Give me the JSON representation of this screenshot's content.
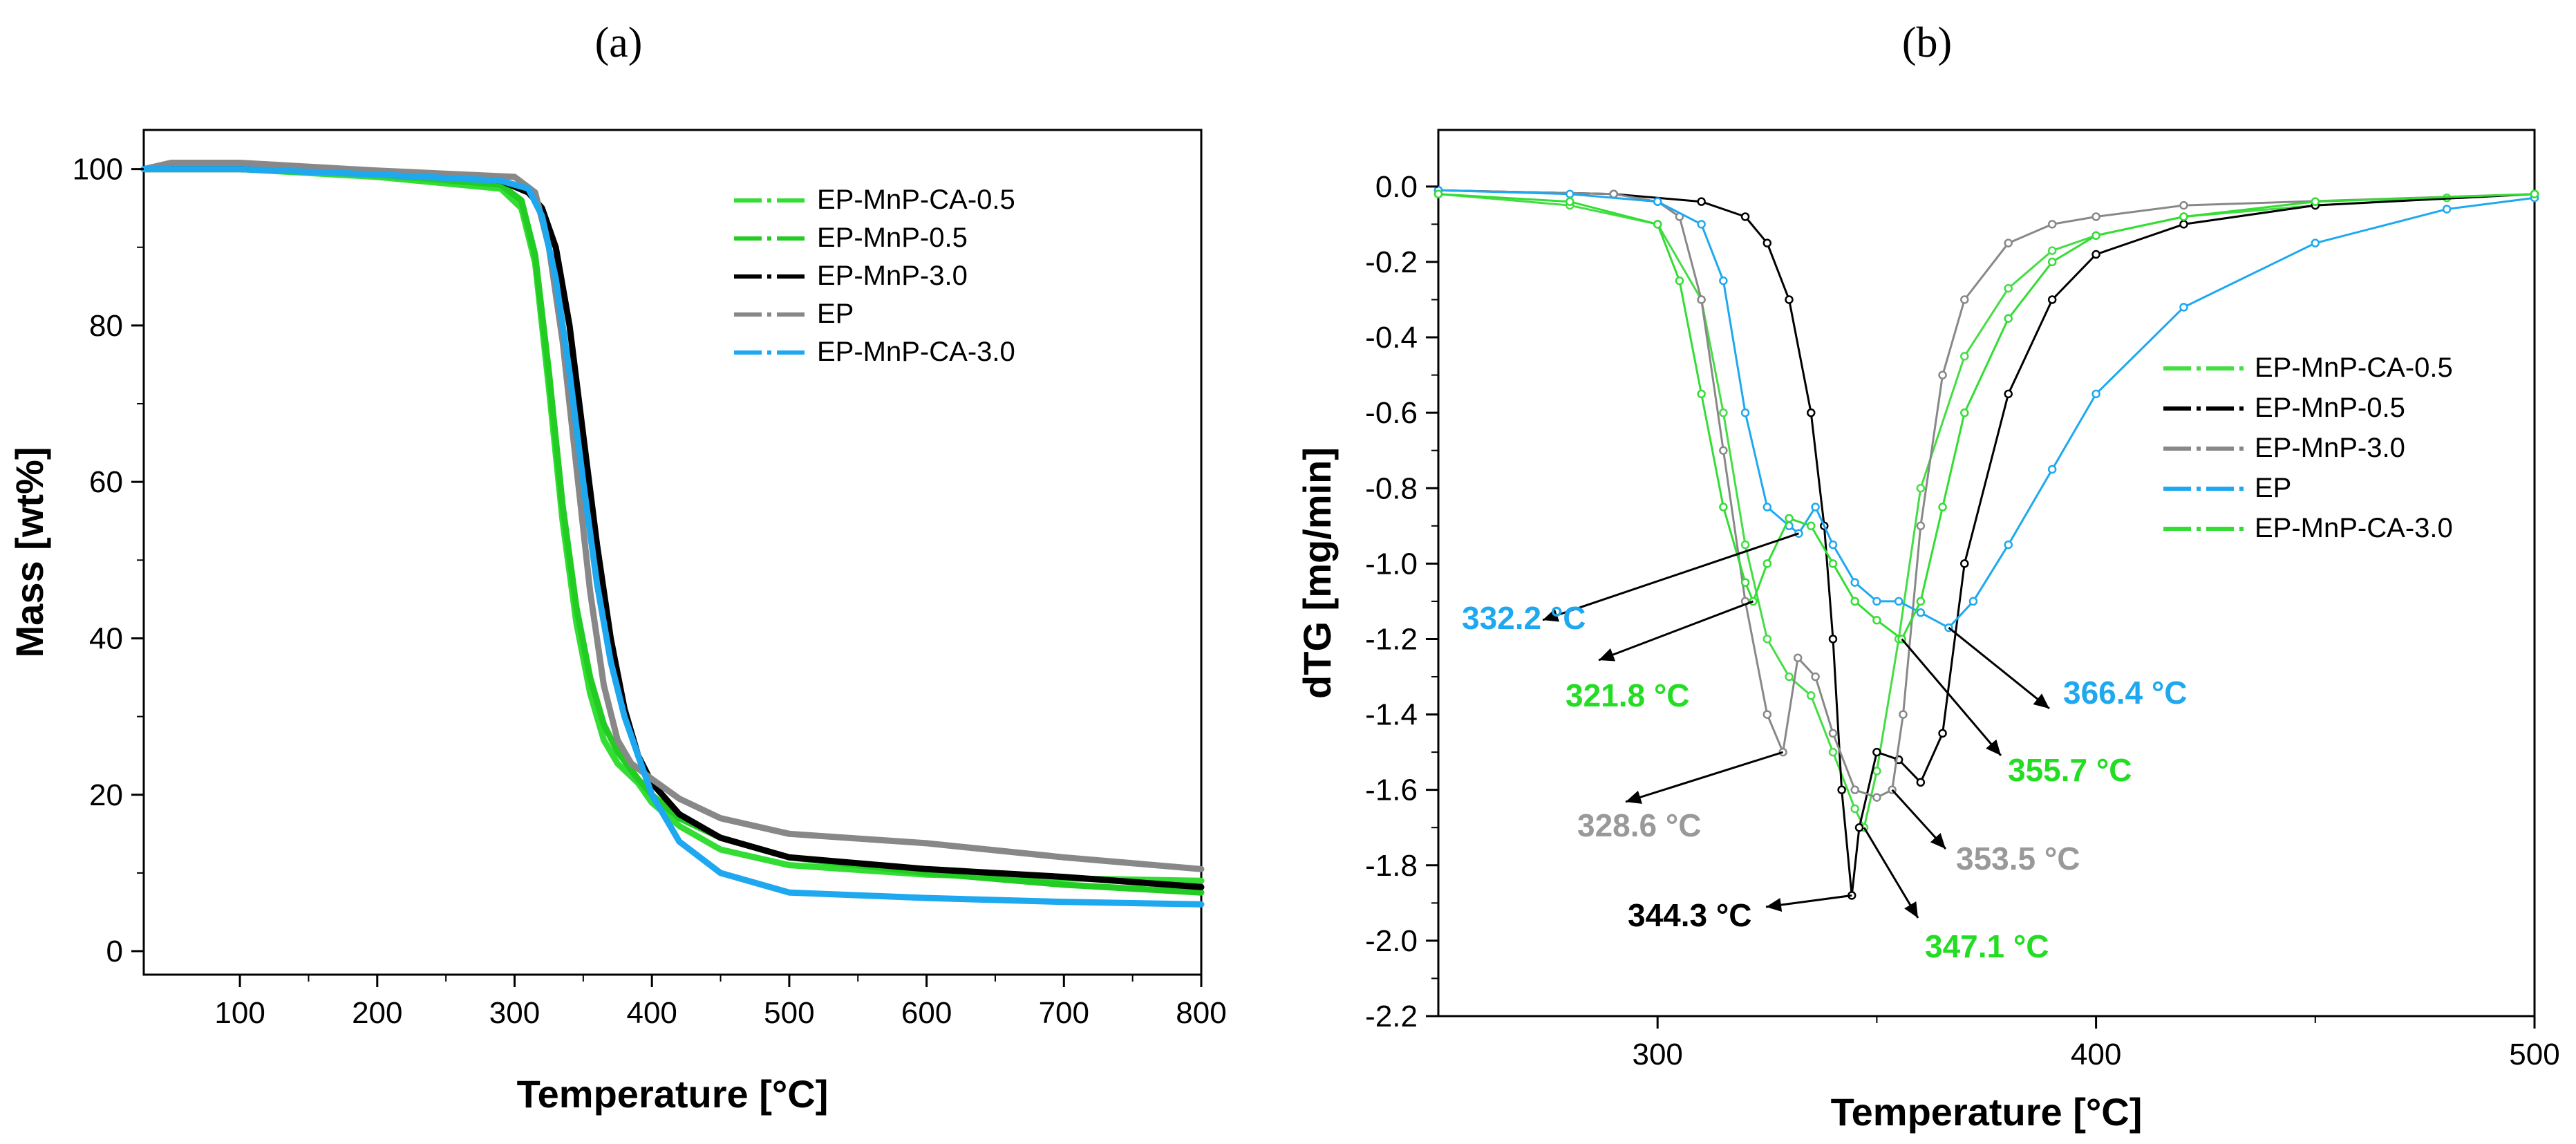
{
  "chart_data": [
    {
      "panel": "(a)",
      "type": "line",
      "title": "",
      "xlabel": "Temperature [°C]",
      "ylabel": "Mass [wt%]",
      "xlim": [
        30,
        800
      ],
      "ylim": [
        -3,
        105
      ],
      "xticks": [
        100,
        200,
        300,
        400,
        500,
        600,
        700,
        800
      ],
      "yticks": [
        0,
        20,
        40,
        60,
        80,
        100
      ],
      "legend_position": "top-right",
      "series": [
        {
          "name": "EP-MnP-CA-0.5",
          "color": "#33dd33",
          "x": [
            30,
            100,
            200,
            290,
            305,
            315,
            325,
            335,
            345,
            355,
            365,
            375,
            390,
            400,
            420,
            450,
            500,
            600,
            700,
            800
          ],
          "y": [
            100,
            100,
            99,
            97.5,
            95,
            88,
            72,
            55,
            42,
            33,
            27,
            24,
            21.5,
            19,
            16,
            13,
            11,
            9.8,
            9.3,
            9
          ]
        },
        {
          "name": "EP-MnP-0.5",
          "color": "#22cc22",
          "x": [
            30,
            100,
            200,
            290,
            305,
            315,
            325,
            335,
            345,
            355,
            365,
            375,
            390,
            400,
            420,
            450,
            500,
            600,
            700,
            800
          ],
          "y": [
            100,
            100,
            99.3,
            98,
            96,
            89,
            74,
            57,
            44,
            35,
            29,
            25.5,
            22,
            20,
            17,
            14.5,
            12,
            10,
            8.5,
            7.5
          ]
        },
        {
          "name": "EP-MnP-3.0",
          "color": "#000000",
          "x": [
            30,
            100,
            200,
            290,
            310,
            320,
            330,
            340,
            350,
            360,
            370,
            380,
            390,
            400,
            420,
            450,
            500,
            600,
            700,
            800
          ],
          "y": [
            100,
            100,
            99.5,
            98.5,
            97,
            95,
            90,
            80,
            66,
            52,
            40,
            31,
            25,
            21.5,
            17.5,
            14.5,
            12,
            10.5,
            9.5,
            8.2
          ]
        },
        {
          "name": "EP",
          "color": "#888888",
          "x": [
            30,
            50,
            100,
            200,
            300,
            315,
            325,
            335,
            345,
            355,
            365,
            375,
            385,
            400,
            420,
            450,
            500,
            600,
            700,
            800
          ],
          "y": [
            100,
            100.8,
            100.8,
            99.8,
            99,
            97,
            90,
            78,
            62,
            46,
            34,
            27,
            24,
            22,
            19.5,
            17,
            15,
            13.8,
            12,
            10.5
          ]
        },
        {
          "name": "EP-MnP-CA-3.0",
          "color": "#1ea8f0",
          "x": [
            30,
            100,
            200,
            290,
            310,
            320,
            330,
            340,
            350,
            360,
            370,
            380,
            390,
            400,
            420,
            450,
            500,
            600,
            700,
            800
          ],
          "y": [
            100,
            100,
            99.3,
            98.5,
            97.5,
            94,
            86,
            74,
            60,
            47,
            37,
            30,
            25,
            20,
            14,
            10,
            7.5,
            6.8,
            6.3,
            6
          ]
        }
      ]
    },
    {
      "panel": "(b)",
      "type": "scatter",
      "title": "",
      "xlabel": "Temperature [°C]",
      "ylabel": "dTG [mg/min]",
      "xlim": [
        250,
        500
      ],
      "ylim": [
        -2.2,
        0.15
      ],
      "xticks": [
        300,
        400,
        500
      ],
      "yticks": [
        0.0,
        -0.2,
        -0.4,
        -0.6,
        -0.8,
        -1.0,
        -1.2,
        -1.4,
        -1.6,
        -1.8,
        -2.0,
        -2.2
      ],
      "ytick_labels": [
        "0.0",
        "-0.2",
        "-0.4",
        "-0.6",
        "-0.8",
        "-1.0",
        "-1.2",
        "-1.4",
        "-1.6",
        "-1.8",
        "-2.0",
        "-2.2"
      ],
      "legend_position": "right",
      "series": [
        {
          "name": "EP-MnP-CA-0.5",
          "color": "#44dd44",
          "x": [
            250,
            280,
            300,
            310,
            315,
            320,
            325,
            330,
            335,
            340,
            345,
            347.1,
            350,
            355,
            360,
            370,
            380,
            390,
            400,
            420,
            450,
            480,
            500
          ],
          "y": [
            -0.02,
            -0.05,
            -0.1,
            -0.3,
            -0.6,
            -0.95,
            -1.2,
            -1.3,
            -1.35,
            -1.5,
            -1.65,
            -1.7,
            -1.55,
            -1.2,
            -0.8,
            -0.45,
            -0.27,
            -0.17,
            -0.13,
            -0.08,
            -0.05,
            -0.03,
            -0.02
          ]
        },
        {
          "name": "EP-MnP-0.5",
          "color": "#000000",
          "x": [
            250,
            290,
            310,
            320,
            325,
            330,
            335,
            338,
            340,
            342,
            344.3,
            346,
            350,
            355,
            360,
            365,
            370,
            380,
            390,
            400,
            420,
            450,
            500
          ],
          "y": [
            -0.01,
            -0.02,
            -0.04,
            -0.08,
            -0.15,
            -0.3,
            -0.6,
            -0.9,
            -1.2,
            -1.6,
            -1.88,
            -1.7,
            -1.5,
            -1.52,
            -1.58,
            -1.45,
            -1.0,
            -0.55,
            -0.3,
            -0.18,
            -0.1,
            -0.05,
            -0.02
          ]
        },
        {
          "name": "EP-MnP-3.0",
          "color": "#888888",
          "x": [
            250,
            290,
            300,
            305,
            310,
            315,
            320,
            325,
            328.6,
            332,
            336,
            340,
            345,
            350,
            353.5,
            356,
            360,
            365,
            370,
            380,
            390,
            400,
            420,
            500
          ],
          "y": [
            -0.01,
            -0.02,
            -0.04,
            -0.08,
            -0.3,
            -0.7,
            -1.1,
            -1.4,
            -1.5,
            -1.25,
            -1.3,
            -1.45,
            -1.6,
            -1.62,
            -1.6,
            -1.4,
            -0.9,
            -0.5,
            -0.3,
            -0.15,
            -0.1,
            -0.08,
            -0.05,
            -0.02
          ]
        },
        {
          "name": "EP",
          "color": "#1ea8f0",
          "x": [
            250,
            280,
            300,
            310,
            315,
            320,
            325,
            330,
            332.2,
            336,
            340,
            345,
            350,
            355,
            360,
            366.4,
            372,
            380,
            390,
            400,
            420,
            450,
            480,
            500
          ],
          "y": [
            -0.01,
            -0.02,
            -0.04,
            -0.1,
            -0.25,
            -0.6,
            -0.85,
            -0.9,
            -0.92,
            -0.85,
            -0.95,
            -1.05,
            -1.1,
            -1.1,
            -1.13,
            -1.17,
            -1.1,
            -0.95,
            -0.75,
            -0.55,
            -0.32,
            -0.15,
            -0.06,
            -0.03
          ]
        },
        {
          "name": "EP-MnP-CA-3.0",
          "color": "#33dd33",
          "x": [
            250,
            280,
            300,
            305,
            310,
            315,
            320,
            321.8,
            325,
            330,
            335,
            340,
            345,
            350,
            355.7,
            360,
            365,
            370,
            380,
            390,
            400,
            420,
            450,
            500
          ],
          "y": [
            -0.02,
            -0.04,
            -0.1,
            -0.25,
            -0.55,
            -0.85,
            -1.05,
            -1.1,
            -1.0,
            -0.88,
            -0.9,
            -1.0,
            -1.1,
            -1.15,
            -1.2,
            -1.1,
            -0.85,
            -0.6,
            -0.35,
            -0.2,
            -0.13,
            -0.08,
            -0.04,
            -0.02
          ]
        }
      ],
      "annotations": [
        {
          "text": "332.2 °C",
          "color": "#1ea8f0",
          "x": 332.2,
          "y": -0.92
        },
        {
          "text": "321.8 °C",
          "color": "#22dd22",
          "x": 321.8,
          "y": -1.1
        },
        {
          "text": "328.6 °C",
          "color": "#999999",
          "x": 328.6,
          "y": -1.5
        },
        {
          "text": "344.3 °C",
          "color": "#000000",
          "x": 344.3,
          "y": -1.88
        },
        {
          "text": "347.1 °C",
          "color": "#22dd22",
          "x": 347.1,
          "y": -1.7
        },
        {
          "text": "353.5 °C",
          "color": "#999999",
          "x": 353.5,
          "y": -1.6
        },
        {
          "text": "355.7 °C",
          "color": "#22dd22",
          "x": 355.7,
          "y": -1.2
        },
        {
          "text": "366.4 °C",
          "color": "#1ea8f0",
          "x": 366.4,
          "y": -1.17
        }
      ]
    }
  ]
}
